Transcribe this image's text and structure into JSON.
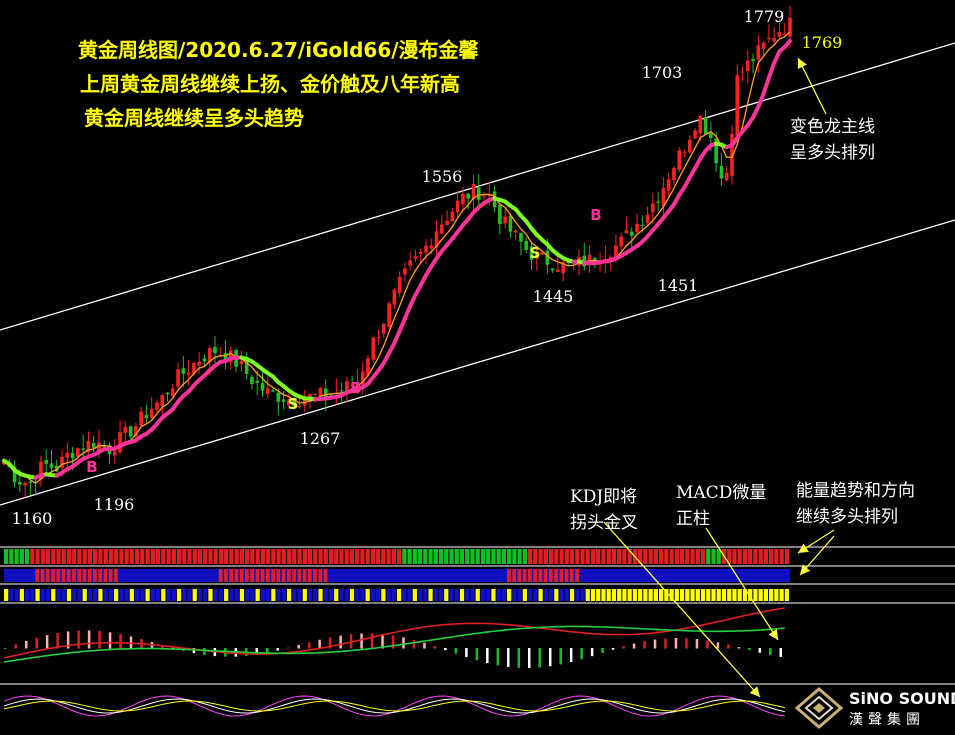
{
  "headlines": {
    "line1": "黄金周线图/2020.6.27/iGold66/漫布金馨",
    "line2": "上周黄金周线继续上扬、金价触及八年新高",
    "line3": "黄金周线继续呈多头趋势"
  },
  "notes": {
    "dragon_line1": "变色龙主线",
    "dragon_line2": "呈多头排列",
    "kdj_line1": "KDJ即将",
    "kdj_line2": "拐头金叉",
    "macd_line1": "MACD微量",
    "macd_line2": "正柱",
    "energy_line1": "能量趋势和方向",
    "energy_line2": "继续多头排列"
  },
  "logo": {
    "brand": "SiNO SOUND",
    "brand_cn": "漢聲集團"
  },
  "colors": {
    "text_yellow": "#ffff00",
    "up_candle": "#ff2020",
    "down_candle": "#20c020",
    "main_line": "#ff3399",
    "main_line_green": "#80ff20",
    "ma_orange": "#ffa020",
    "channel": "#ffffff",
    "label_white": "#ffffff"
  },
  "chart_data": {
    "type": "candlestick",
    "y_range": [
      1130,
      1790
    ],
    "price_labels": [
      {
        "text": "1160",
        "value": 1160
      },
      {
        "text": "1196",
        "value": 1196
      },
      {
        "text": "1267",
        "value": 1267
      },
      {
        "text": "1556",
        "value": 1556
      },
      {
        "text": "1445",
        "value": 1445
      },
      {
        "text": "1703",
        "value": 1703
      },
      {
        "text": "1451",
        "value": 1451
      },
      {
        "text": "1779",
        "value": 1779
      },
      {
        "text": "1769",
        "value": 1769
      }
    ],
    "signals": [
      {
        "text": "B",
        "type": "buy"
      },
      {
        "text": "S",
        "type": "sell"
      },
      {
        "text": "B",
        "type": "buy"
      },
      {
        "text": "S",
        "type": "sell"
      },
      {
        "text": "B",
        "type": "buy"
      }
    ],
    "close_path": [
      1195,
      1170,
      1165,
      1190,
      1185,
      1205,
      1215,
      1220,
      1210,
      1225,
      1240,
      1260,
      1275,
      1300,
      1315,
      1330,
      1340,
      1335,
      1320,
      1300,
      1285,
      1280,
      1275,
      1278,
      1280,
      1282,
      1290,
      1300,
      1345,
      1380,
      1420,
      1450,
      1470,
      1500,
      1520,
      1540,
      1550,
      1545,
      1510,
      1490,
      1470,
      1460,
      1455,
      1450,
      1455,
      1460,
      1470,
      1480,
      1500,
      1520,
      1545,
      1580,
      1610,
      1650,
      1620,
      1550,
      1700,
      1720,
      1740,
      1760,
      1769
    ]
  }
}
